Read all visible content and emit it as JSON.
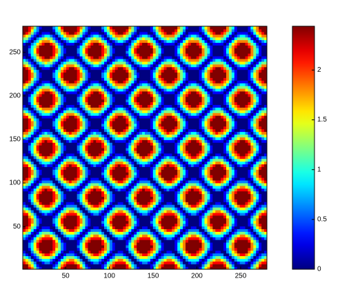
{
  "chart_data": {
    "type": "contour",
    "colormap": "jet",
    "xlim": [
      1,
      280
    ],
    "ylim": [
      1,
      280
    ],
    "xticks": [
      50,
      100,
      150,
      200,
      250
    ],
    "yticks": [
      50,
      100,
      150,
      200,
      250
    ],
    "clim": [
      0,
      2.44
    ],
    "cticks": [
      0,
      0.5,
      1,
      1.5,
      2
    ]
  }
}
